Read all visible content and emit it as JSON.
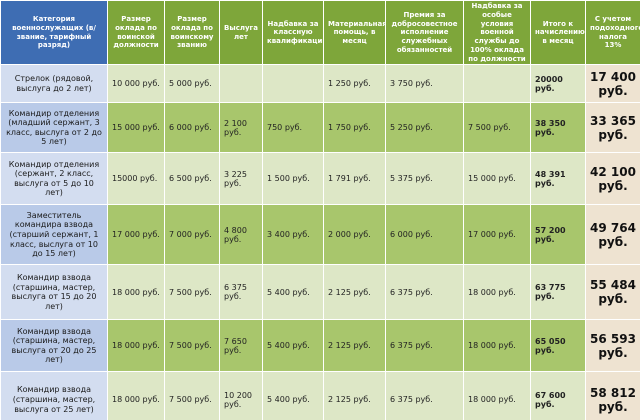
{
  "table": {
    "header": [
      "Категория военнослужащих (в/звание, тарифный разряд)",
      "Размер оклада по воинской должности",
      "Размер оклада по воинскому званию",
      "Выслуга лет",
      "Надбавка за классную квалификацию",
      "Материальная помощь, в месяц",
      "Премия за добросовестное исполнение служебных обязанностей",
      "Надбавка за особые условия военной службы до 100% оклада по должности",
      "Итого к начислению в месяц",
      "С учетом подоходного налога 13%"
    ],
    "rows": [
      [
        "Стрелок (рядовой, выслуга до 2 лет)",
        "10 000 руб.",
        "5 000 руб.",
        null,
        null,
        "1 250 руб.",
        "3 750 руб.",
        null,
        "20000 руб.",
        "17 400 руб."
      ],
      [
        "Командир отделения (младший сержант, 3 класс, выслуга от 2 до 5 лет)",
        "15 000 руб.",
        "6 000 руб.",
        "2 100 руб.",
        "750 руб.",
        "1 750 руб.",
        "5 250 руб.",
        "7 500 руб.",
        "38 350 руб.",
        "33 365 руб."
      ],
      [
        "Командир отделения (сержант, 2 класс, выслуга от 5 до 10 лет)",
        "15000 руб.",
        "6 500 руб.",
        "3 225 руб.",
        "1 500 руб.",
        "1 791 руб.",
        "5 375 руб.",
        "15 000 руб.",
        "48 391 руб.",
        "42 100 руб."
      ],
      [
        "Заместитель командира взвода (старший сержант, 1 класс, выслуга от 10 до 15 лет)",
        "17 000 руб.",
        "7 000 руб.",
        "4 800 руб.",
        "3 400 руб.",
        "2 000 руб.",
        "6 000 руб.",
        "17 000 руб.",
        "57 200 руб.",
        "49 764 руб."
      ],
      [
        "Командир взвода (старшина, мастер, выслуга от 15 до 20 лет)",
        "18 000 руб.",
        "7 500 руб.",
        "6 375 руб.",
        "5 400 руб.",
        "2 125 руб.",
        "6 375 руб.",
        "18 000 руб.",
        "63 775 руб.",
        "55 484 руб."
      ],
      [
        "Командир взвода (старшина, мастер, выслуга от 20 до 25 лет)",
        "18 000 руб.",
        "7 500 руб.",
        "7 650 руб.",
        "5 400 руб.",
        "2 125 руб.",
        "6 375 руб.",
        "18 000 руб.",
        "65 050 руб.",
        "56 593 руб."
      ],
      [
        "Командир взвода (старшина, мастер, выслуга от 25 лет)",
        "18 000 руб.",
        "7 500 руб.",
        "10 200 руб.",
        "5 400 руб.",
        "2 125 руб.",
        "6 375 руб.",
        "18 000 руб.",
        "67 600 руб.",
        "58 812 руб."
      ]
    ]
  }
}
